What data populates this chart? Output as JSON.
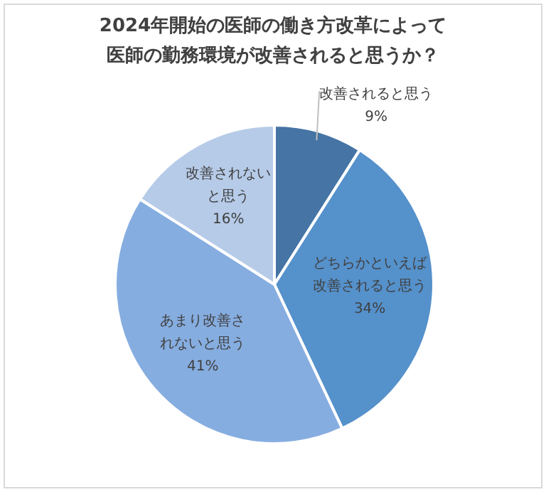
{
  "chart_data": {
    "type": "pie",
    "title": "2024年開始の医師の働き方改革によって医師の勤務環境が改善されると思うか？",
    "categories": [
      "改善されると思う",
      "どちらかといえば改善されると思う",
      "あまり改善されないと思う",
      "改善されないと思う"
    ],
    "values": [
      9,
      34,
      41,
      16
    ],
    "value_labels": [
      "9%",
      "34%",
      "41%",
      "16%"
    ],
    "colors": [
      "#4574a5",
      "#5591cb",
      "#86ade0",
      "#b6cbe8"
    ]
  }
}
